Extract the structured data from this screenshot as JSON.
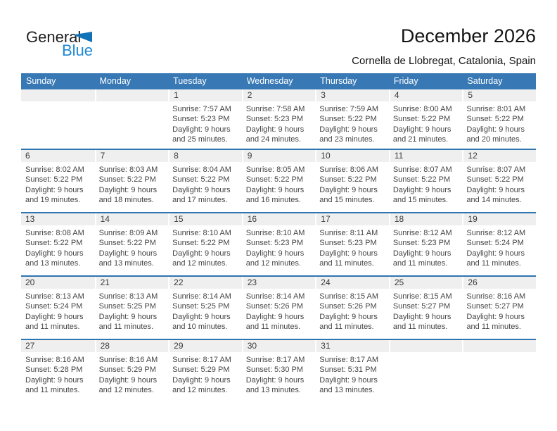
{
  "page": {
    "logo": {
      "part1": "General",
      "part2": "Blue"
    },
    "title": "December 2026",
    "subtitle": "Cornella de Llobregat, Catalonia, Spain"
  },
  "colors": {
    "header_bg": "#3879b5",
    "week_separator": "#2e74ae",
    "day_band_bg": "#efefef",
    "logo_text_blue": "#1e88d2",
    "logo_triangle_blue": "#1272b8",
    "header_text": "#ffffff"
  },
  "calendar": {
    "weekday_headers": [
      "Sunday",
      "Monday",
      "Tuesday",
      "Wednesday",
      "Thursday",
      "Friday",
      "Saturday"
    ],
    "weeks": [
      [
        null,
        null,
        {
          "day": "1",
          "sunrise": "Sunrise: 7:57 AM",
          "sunset": "Sunset: 5:23 PM",
          "daylight1": "Daylight: 9 hours",
          "daylight2": "and 25 minutes."
        },
        {
          "day": "2",
          "sunrise": "Sunrise: 7:58 AM",
          "sunset": "Sunset: 5:23 PM",
          "daylight1": "Daylight: 9 hours",
          "daylight2": "and 24 minutes."
        },
        {
          "day": "3",
          "sunrise": "Sunrise: 7:59 AM",
          "sunset": "Sunset: 5:22 PM",
          "daylight1": "Daylight: 9 hours",
          "daylight2": "and 23 minutes."
        },
        {
          "day": "4",
          "sunrise": "Sunrise: 8:00 AM",
          "sunset": "Sunset: 5:22 PM",
          "daylight1": "Daylight: 9 hours",
          "daylight2": "and 21 minutes."
        },
        {
          "day": "5",
          "sunrise": "Sunrise: 8:01 AM",
          "sunset": "Sunset: 5:22 PM",
          "daylight1": "Daylight: 9 hours",
          "daylight2": "and 20 minutes."
        }
      ],
      [
        {
          "day": "6",
          "sunrise": "Sunrise: 8:02 AM",
          "sunset": "Sunset: 5:22 PM",
          "daylight1": "Daylight: 9 hours",
          "daylight2": "and 19 minutes."
        },
        {
          "day": "7",
          "sunrise": "Sunrise: 8:03 AM",
          "sunset": "Sunset: 5:22 PM",
          "daylight1": "Daylight: 9 hours",
          "daylight2": "and 18 minutes."
        },
        {
          "day": "8",
          "sunrise": "Sunrise: 8:04 AM",
          "sunset": "Sunset: 5:22 PM",
          "daylight1": "Daylight: 9 hours",
          "daylight2": "and 17 minutes."
        },
        {
          "day": "9",
          "sunrise": "Sunrise: 8:05 AM",
          "sunset": "Sunset: 5:22 PM",
          "daylight1": "Daylight: 9 hours",
          "daylight2": "and 16 minutes."
        },
        {
          "day": "10",
          "sunrise": "Sunrise: 8:06 AM",
          "sunset": "Sunset: 5:22 PM",
          "daylight1": "Daylight: 9 hours",
          "daylight2": "and 15 minutes."
        },
        {
          "day": "11",
          "sunrise": "Sunrise: 8:07 AM",
          "sunset": "Sunset: 5:22 PM",
          "daylight1": "Daylight: 9 hours",
          "daylight2": "and 15 minutes."
        },
        {
          "day": "12",
          "sunrise": "Sunrise: 8:07 AM",
          "sunset": "Sunset: 5:22 PM",
          "daylight1": "Daylight: 9 hours",
          "daylight2": "and 14 minutes."
        }
      ],
      [
        {
          "day": "13",
          "sunrise": "Sunrise: 8:08 AM",
          "sunset": "Sunset: 5:22 PM",
          "daylight1": "Daylight: 9 hours",
          "daylight2": "and 13 minutes."
        },
        {
          "day": "14",
          "sunrise": "Sunrise: 8:09 AM",
          "sunset": "Sunset: 5:22 PM",
          "daylight1": "Daylight: 9 hours",
          "daylight2": "and 13 minutes."
        },
        {
          "day": "15",
          "sunrise": "Sunrise: 8:10 AM",
          "sunset": "Sunset: 5:22 PM",
          "daylight1": "Daylight: 9 hours",
          "daylight2": "and 12 minutes."
        },
        {
          "day": "16",
          "sunrise": "Sunrise: 8:10 AM",
          "sunset": "Sunset: 5:23 PM",
          "daylight1": "Daylight: 9 hours",
          "daylight2": "and 12 minutes."
        },
        {
          "day": "17",
          "sunrise": "Sunrise: 8:11 AM",
          "sunset": "Sunset: 5:23 PM",
          "daylight1": "Daylight: 9 hours",
          "daylight2": "and 11 minutes."
        },
        {
          "day": "18",
          "sunrise": "Sunrise: 8:12 AM",
          "sunset": "Sunset: 5:23 PM",
          "daylight1": "Daylight: 9 hours",
          "daylight2": "and 11 minutes."
        },
        {
          "day": "19",
          "sunrise": "Sunrise: 8:12 AM",
          "sunset": "Sunset: 5:24 PM",
          "daylight1": "Daylight: 9 hours",
          "daylight2": "and 11 minutes."
        }
      ],
      [
        {
          "day": "20",
          "sunrise": "Sunrise: 8:13 AM",
          "sunset": "Sunset: 5:24 PM",
          "daylight1": "Daylight: 9 hours",
          "daylight2": "and 11 minutes."
        },
        {
          "day": "21",
          "sunrise": "Sunrise: 8:13 AM",
          "sunset": "Sunset: 5:25 PM",
          "daylight1": "Daylight: 9 hours",
          "daylight2": "and 11 minutes."
        },
        {
          "day": "22",
          "sunrise": "Sunrise: 8:14 AM",
          "sunset": "Sunset: 5:25 PM",
          "daylight1": "Daylight: 9 hours",
          "daylight2": "and 10 minutes."
        },
        {
          "day": "23",
          "sunrise": "Sunrise: 8:14 AM",
          "sunset": "Sunset: 5:26 PM",
          "daylight1": "Daylight: 9 hours",
          "daylight2": "and 11 minutes."
        },
        {
          "day": "24",
          "sunrise": "Sunrise: 8:15 AM",
          "sunset": "Sunset: 5:26 PM",
          "daylight1": "Daylight: 9 hours",
          "daylight2": "and 11 minutes."
        },
        {
          "day": "25",
          "sunrise": "Sunrise: 8:15 AM",
          "sunset": "Sunset: 5:27 PM",
          "daylight1": "Daylight: 9 hours",
          "daylight2": "and 11 minutes."
        },
        {
          "day": "26",
          "sunrise": "Sunrise: 8:16 AM",
          "sunset": "Sunset: 5:27 PM",
          "daylight1": "Daylight: 9 hours",
          "daylight2": "and 11 minutes."
        }
      ],
      [
        {
          "day": "27",
          "sunrise": "Sunrise: 8:16 AM",
          "sunset": "Sunset: 5:28 PM",
          "daylight1": "Daylight: 9 hours",
          "daylight2": "and 11 minutes."
        },
        {
          "day": "28",
          "sunrise": "Sunrise: 8:16 AM",
          "sunset": "Sunset: 5:29 PM",
          "daylight1": "Daylight: 9 hours",
          "daylight2": "and 12 minutes."
        },
        {
          "day": "29",
          "sunrise": "Sunrise: 8:17 AM",
          "sunset": "Sunset: 5:29 PM",
          "daylight1": "Daylight: 9 hours",
          "daylight2": "and 12 minutes."
        },
        {
          "day": "30",
          "sunrise": "Sunrise: 8:17 AM",
          "sunset": "Sunset: 5:30 PM",
          "daylight1": "Daylight: 9 hours",
          "daylight2": "and 13 minutes."
        },
        {
          "day": "31",
          "sunrise": "Sunrise: 8:17 AM",
          "sunset": "Sunset: 5:31 PM",
          "daylight1": "Daylight: 9 hours",
          "daylight2": "and 13 minutes."
        },
        null,
        null
      ]
    ]
  }
}
